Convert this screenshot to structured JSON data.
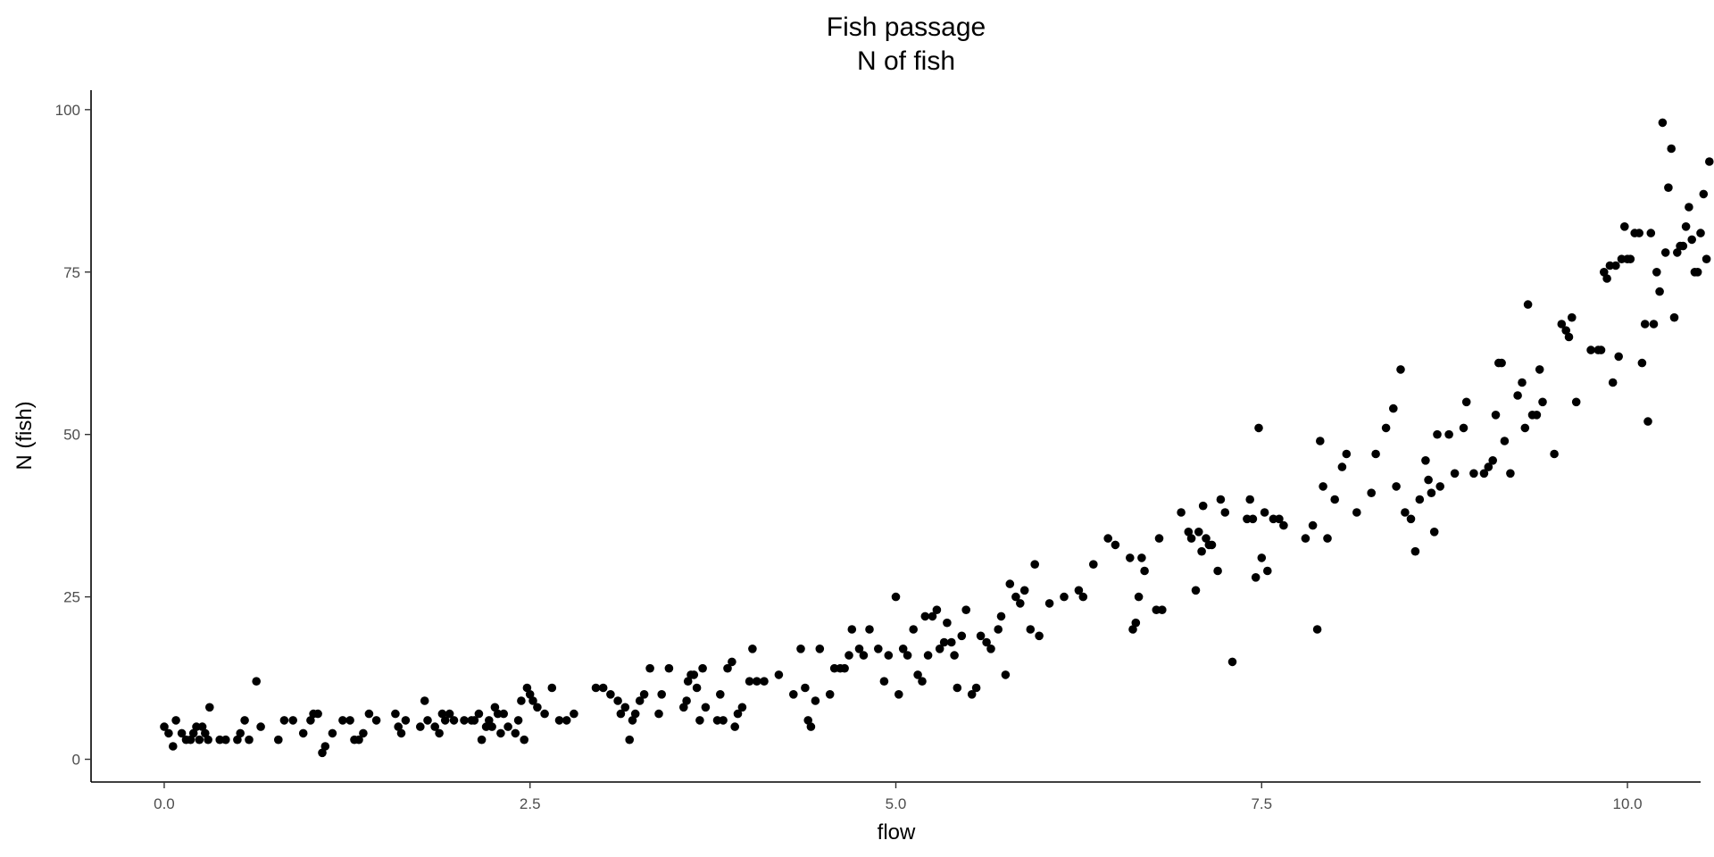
{
  "chart_data": {
    "type": "scatter",
    "title": "Fish passage",
    "subtitle": "N of fish",
    "xlabel": "flow",
    "ylabel": "N (fish)",
    "xlim": [
      -0.5,
      10.5
    ],
    "ylim": [
      -3.5,
      103
    ],
    "x_ticks": [
      0,
      2.5,
      5,
      7.5,
      10
    ],
    "x_tick_labels": [
      "0.0",
      "2.5",
      "5.0",
      "7.5",
      "10.0"
    ],
    "y_ticks": [
      0,
      25,
      50,
      75,
      100
    ],
    "y_tick_labels": [
      "0",
      "25",
      "50",
      "75",
      "100"
    ],
    "grid": false,
    "point_color": "#000000",
    "points": [
      [
        0.0,
        5
      ],
      [
        0.03,
        4
      ],
      [
        0.06,
        2
      ],
      [
        0.08,
        6
      ],
      [
        0.12,
        4
      ],
      [
        0.15,
        3
      ],
      [
        0.18,
        3
      ],
      [
        0.2,
        4
      ],
      [
        0.22,
        5
      ],
      [
        0.24,
        3
      ],
      [
        0.26,
        5
      ],
      [
        0.28,
        4
      ],
      [
        0.3,
        3
      ],
      [
        0.31,
        8
      ],
      [
        0.38,
        3
      ],
      [
        0.42,
        3
      ],
      [
        0.5,
        3
      ],
      [
        0.52,
        4
      ],
      [
        0.55,
        6
      ],
      [
        0.58,
        3
      ],
      [
        0.63,
        12
      ],
      [
        0.66,
        5
      ],
      [
        0.78,
        3
      ],
      [
        0.82,
        6
      ],
      [
        0.88,
        6
      ],
      [
        0.95,
        4
      ],
      [
        1.0,
        6
      ],
      [
        1.02,
        7
      ],
      [
        1.05,
        7
      ],
      [
        1.08,
        1
      ],
      [
        1.1,
        2
      ],
      [
        1.15,
        4
      ],
      [
        1.22,
        6
      ],
      [
        1.27,
        6
      ],
      [
        1.3,
        3
      ],
      [
        1.33,
        3
      ],
      [
        1.36,
        4
      ],
      [
        1.4,
        7
      ],
      [
        1.45,
        6
      ],
      [
        1.58,
        7
      ],
      [
        1.6,
        5
      ],
      [
        1.62,
        4
      ],
      [
        1.65,
        6
      ],
      [
        1.75,
        5
      ],
      [
        1.78,
        9
      ],
      [
        1.8,
        6
      ],
      [
        1.85,
        5
      ],
      [
        1.88,
        4
      ],
      [
        1.9,
        7
      ],
      [
        1.92,
        6
      ],
      [
        1.95,
        7
      ],
      [
        1.98,
        6
      ],
      [
        2.05,
        6
      ],
      [
        2.1,
        6
      ],
      [
        2.12,
        6
      ],
      [
        2.15,
        7
      ],
      [
        2.17,
        3
      ],
      [
        2.2,
        5
      ],
      [
        2.22,
        6
      ],
      [
        2.24,
        5
      ],
      [
        2.26,
        8
      ],
      [
        2.28,
        7
      ],
      [
        2.3,
        4
      ],
      [
        2.32,
        7
      ],
      [
        2.35,
        5
      ],
      [
        2.4,
        4
      ],
      [
        2.42,
        6
      ],
      [
        2.44,
        9
      ],
      [
        2.46,
        3
      ],
      [
        2.48,
        11
      ],
      [
        2.5,
        10
      ],
      [
        2.52,
        9
      ],
      [
        2.55,
        8
      ],
      [
        2.6,
        7
      ],
      [
        2.65,
        11
      ],
      [
        2.7,
        6
      ],
      [
        2.75,
        6
      ],
      [
        2.8,
        7
      ],
      [
        2.95,
        11
      ],
      [
        3.0,
        11
      ],
      [
        3.05,
        10
      ],
      [
        3.1,
        9
      ],
      [
        3.12,
        7
      ],
      [
        3.15,
        8
      ],
      [
        3.18,
        3
      ],
      [
        3.2,
        6
      ],
      [
        3.22,
        7
      ],
      [
        3.25,
        9
      ],
      [
        3.28,
        10
      ],
      [
        3.32,
        14
      ],
      [
        3.38,
        7
      ],
      [
        3.4,
        10
      ],
      [
        3.45,
        14
      ],
      [
        3.55,
        8
      ],
      [
        3.57,
        9
      ],
      [
        3.58,
        12
      ],
      [
        3.6,
        13
      ],
      [
        3.62,
        13
      ],
      [
        3.64,
        11
      ],
      [
        3.66,
        6
      ],
      [
        3.68,
        14
      ],
      [
        3.7,
        8
      ],
      [
        3.78,
        6
      ],
      [
        3.8,
        10
      ],
      [
        3.82,
        6
      ],
      [
        3.85,
        14
      ],
      [
        3.88,
        15
      ],
      [
        3.9,
        5
      ],
      [
        3.92,
        7
      ],
      [
        3.95,
        8
      ],
      [
        4.0,
        12
      ],
      [
        4.02,
        17
      ],
      [
        4.05,
        12
      ],
      [
        4.1,
        12
      ],
      [
        4.2,
        13
      ],
      [
        4.3,
        10
      ],
      [
        4.35,
        17
      ],
      [
        4.38,
        11
      ],
      [
        4.4,
        6
      ],
      [
        4.42,
        5
      ],
      [
        4.45,
        9
      ],
      [
        4.48,
        17
      ],
      [
        4.55,
        10
      ],
      [
        4.58,
        14
      ],
      [
        4.62,
        14
      ],
      [
        4.65,
        14
      ],
      [
        4.68,
        16
      ],
      [
        4.7,
        20
      ],
      [
        4.75,
        17
      ],
      [
        4.78,
        16
      ],
      [
        4.82,
        20
      ],
      [
        4.88,
        17
      ],
      [
        4.92,
        12
      ],
      [
        4.95,
        16
      ],
      [
        5.0,
        25
      ],
      [
        5.02,
        10
      ],
      [
        5.05,
        17
      ],
      [
        5.08,
        16
      ],
      [
        5.12,
        20
      ],
      [
        5.15,
        13
      ],
      [
        5.18,
        12
      ],
      [
        5.2,
        22
      ],
      [
        5.22,
        16
      ],
      [
        5.25,
        22
      ],
      [
        5.28,
        23
      ],
      [
        5.3,
        17
      ],
      [
        5.33,
        18
      ],
      [
        5.35,
        21
      ],
      [
        5.38,
        18
      ],
      [
        5.4,
        16
      ],
      [
        5.42,
        11
      ],
      [
        5.45,
        19
      ],
      [
        5.48,
        23
      ],
      [
        5.52,
        10
      ],
      [
        5.55,
        11
      ],
      [
        5.58,
        19
      ],
      [
        5.62,
        18
      ],
      [
        5.65,
        17
      ],
      [
        5.7,
        20
      ],
      [
        5.72,
        22
      ],
      [
        5.75,
        13
      ],
      [
        5.78,
        27
      ],
      [
        5.82,
        25
      ],
      [
        5.85,
        24
      ],
      [
        5.88,
        26
      ],
      [
        5.92,
        20
      ],
      [
        5.95,
        30
      ],
      [
        5.98,
        19
      ],
      [
        6.05,
        24
      ],
      [
        6.15,
        25
      ],
      [
        6.25,
        26
      ],
      [
        6.28,
        25
      ],
      [
        6.35,
        30
      ],
      [
        6.45,
        34
      ],
      [
        6.5,
        33
      ],
      [
        6.6,
        31
      ],
      [
        6.62,
        20
      ],
      [
        6.64,
        21
      ],
      [
        6.66,
        25
      ],
      [
        6.68,
        31
      ],
      [
        6.7,
        29
      ],
      [
        6.78,
        23
      ],
      [
        6.8,
        34
      ],
      [
        6.82,
        23
      ],
      [
        6.95,
        38
      ],
      [
        7.0,
        35
      ],
      [
        7.02,
        34
      ],
      [
        7.05,
        26
      ],
      [
        7.07,
        35
      ],
      [
        7.09,
        32
      ],
      [
        7.1,
        39
      ],
      [
        7.12,
        34
      ],
      [
        7.14,
        33
      ],
      [
        7.16,
        33
      ],
      [
        7.2,
        29
      ],
      [
        7.22,
        40
      ],
      [
        7.25,
        38
      ],
      [
        7.3,
        15
      ],
      [
        7.4,
        37
      ],
      [
        7.42,
        40
      ],
      [
        7.44,
        37
      ],
      [
        7.46,
        28
      ],
      [
        7.48,
        51
      ],
      [
        7.5,
        31
      ],
      [
        7.52,
        38
      ],
      [
        7.54,
        29
      ],
      [
        7.58,
        37
      ],
      [
        7.62,
        37
      ],
      [
        7.65,
        36
      ],
      [
        7.8,
        34
      ],
      [
        7.85,
        36
      ],
      [
        7.88,
        20
      ],
      [
        7.9,
        49
      ],
      [
        7.92,
        42
      ],
      [
        7.95,
        34
      ],
      [
        8.0,
        40
      ],
      [
        8.05,
        45
      ],
      [
        8.08,
        47
      ],
      [
        8.15,
        38
      ],
      [
        8.25,
        41
      ],
      [
        8.28,
        47
      ],
      [
        8.35,
        51
      ],
      [
        8.4,
        54
      ],
      [
        8.42,
        42
      ],
      [
        8.45,
        60
      ],
      [
        8.48,
        38
      ],
      [
        8.52,
        37
      ],
      [
        8.55,
        32
      ],
      [
        8.58,
        40
      ],
      [
        8.62,
        46
      ],
      [
        8.64,
        43
      ],
      [
        8.66,
        41
      ],
      [
        8.68,
        35
      ],
      [
        8.7,
        50
      ],
      [
        8.72,
        42
      ],
      [
        8.78,
        50
      ],
      [
        8.82,
        44
      ],
      [
        8.88,
        51
      ],
      [
        8.9,
        55
      ],
      [
        8.95,
        44
      ],
      [
        9.02,
        44
      ],
      [
        9.05,
        45
      ],
      [
        9.08,
        46
      ],
      [
        9.1,
        53
      ],
      [
        9.12,
        61
      ],
      [
        9.14,
        61
      ],
      [
        9.16,
        49
      ],
      [
        9.2,
        44
      ],
      [
        9.25,
        56
      ],
      [
        9.28,
        58
      ],
      [
        9.3,
        51
      ],
      [
        9.32,
        70
      ],
      [
        9.35,
        53
      ],
      [
        9.38,
        53
      ],
      [
        9.4,
        60
      ],
      [
        9.42,
        55
      ],
      [
        9.5,
        47
      ],
      [
        9.55,
        67
      ],
      [
        9.58,
        66
      ],
      [
        9.6,
        65
      ],
      [
        9.62,
        68
      ],
      [
        9.65,
        55
      ],
      [
        9.75,
        63
      ],
      [
        9.8,
        63
      ],
      [
        9.82,
        63
      ],
      [
        9.84,
        75
      ],
      [
        9.86,
        74
      ],
      [
        9.88,
        76
      ],
      [
        9.9,
        58
      ],
      [
        9.92,
        76
      ],
      [
        9.94,
        62
      ],
      [
        9.96,
        77
      ],
      [
        9.98,
        82
      ],
      [
        10.0,
        77
      ],
      [
        10.02,
        77
      ],
      [
        10.05,
        81
      ],
      [
        10.08,
        81
      ],
      [
        10.1,
        61
      ],
      [
        10.12,
        67
      ],
      [
        10.14,
        52
      ],
      [
        10.16,
        81
      ],
      [
        10.18,
        67
      ],
      [
        10.2,
        75
      ],
      [
        10.22,
        72
      ],
      [
        10.24,
        98
      ],
      [
        10.26,
        78
      ],
      [
        10.28,
        88
      ],
      [
        10.3,
        94
      ],
      [
        10.32,
        68
      ],
      [
        10.34,
        78
      ],
      [
        10.36,
        79
      ],
      [
        10.38,
        79
      ],
      [
        10.4,
        82
      ],
      [
        10.42,
        85
      ],
      [
        10.44,
        80
      ],
      [
        10.46,
        75
      ],
      [
        10.48,
        75
      ],
      [
        10.5,
        81
      ],
      [
        10.52,
        87
      ],
      [
        10.54,
        77
      ],
      [
        10.56,
        92
      ]
    ]
  }
}
